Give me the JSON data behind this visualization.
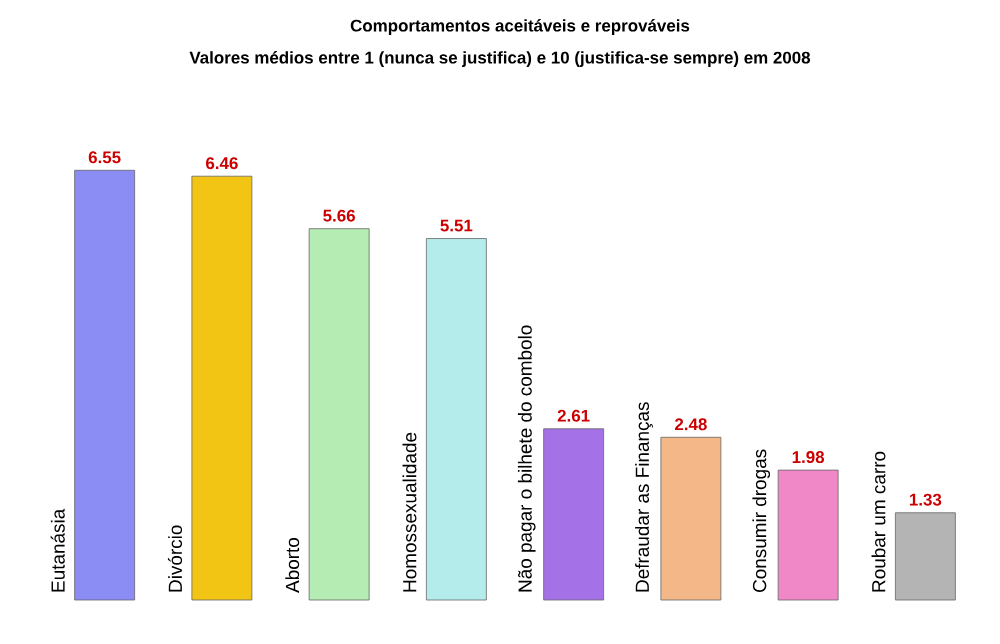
{
  "chart_data": {
    "type": "bar",
    "title": "Comportamentos aceitáveis e reprováveis",
    "subtitle": "Valores médios entre 1 (nunca se justifica) e 10 (justifica-se sempre) em 2008",
    "categories": [
      "Eutanásia",
      "Divórcio",
      "Aborto",
      "Homossexualidade",
      "Não pagar o bilhete do combolo",
      "Defraudar as Finanças",
      "Consumir drogas",
      "Roubar um carro"
    ],
    "values": [
      6.55,
      6.46,
      5.66,
      5.51,
      2.61,
      2.48,
      1.98,
      1.33
    ],
    "colors": [
      "#8c8cf5",
      "#f2c414",
      "#b4ecb4",
      "#b4ecec",
      "#a472e6",
      "#f4b888",
      "#f088c8",
      "#b4b4b4"
    ],
    "data_labels": true
  }
}
